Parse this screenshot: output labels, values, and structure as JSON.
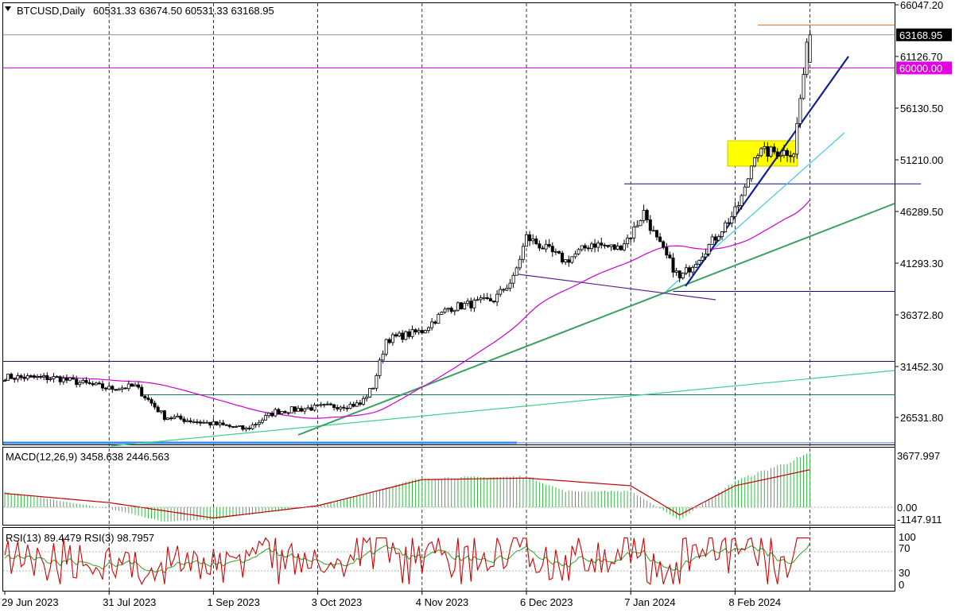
{
  "chart_data": [
    {
      "type": "candlestick",
      "title": "BTCUSD,Daily",
      "ohlc_label": "60531.33 63674.50 60531.33 63168.95",
      "last_price": 63168.95,
      "last_price_label": "63168.95",
      "level_label": "60000.00",
      "y_tick_labels": [
        "66047.20",
        "61126.70",
        "56130.50",
        "51210.00",
        "46289.50",
        "41293.30",
        "36372.80",
        "31452.30",
        "26531.80"
      ],
      "ylim": [
        23700,
        66047.2
      ],
      "x_tick_labels": [
        "29 Jun 2023",
        "31 Jul 2023",
        "1 Sep 2023",
        "3 Oct 2023",
        "4 Nov 2023",
        "6 Dec 2023",
        "7 Jan 2024",
        "8 Feb 2024"
      ],
      "horizontal_levels": [
        66047.2,
        63168.95,
        60000,
        48900,
        38600,
        31900,
        28700,
        24100
      ],
      "price_anchors": [
        [
          "29 Jun 2023",
          30400
        ],
        [
          "15 Jul 2023",
          30300
        ],
        [
          "31 Jul 2023",
          29300
        ],
        [
          "8 Aug 2023",
          29500
        ],
        [
          "17 Aug 2023",
          26600
        ],
        [
          "1 Sep 2023",
          25900
        ],
        [
          "11 Sep 2023",
          25400
        ],
        [
          "20 Sep 2023",
          27100
        ],
        [
          "3 Oct 2023",
          27500
        ],
        [
          "16 Oct 2023",
          27800
        ],
        [
          "20 Oct 2023",
          29500
        ],
        [
          "24 Oct 2023",
          34000
        ],
        [
          "4 Nov 2023",
          34800
        ],
        [
          "12 Nov 2023",
          37000
        ],
        [
          "26 Nov 2023",
          37800
        ],
        [
          "2 Dec 2023",
          39800
        ],
        [
          "6 Dec 2023",
          43800
        ],
        [
          "18 Dec 2023",
          41500
        ],
        [
          "26 Dec 2023",
          43200
        ],
        [
          "3 Jan 2024",
          42700
        ],
        [
          "7 Jan 2024",
          44000
        ],
        [
          "11 Jan 2024",
          46200
        ],
        [
          "15 Jan 2024",
          43500
        ],
        [
          "22 Jan 2024",
          39800
        ],
        [
          "31 Jan 2024",
          43000
        ],
        [
          "8 Feb 2024",
          46200
        ],
        [
          "11 Feb 2024",
          48300
        ],
        [
          "14 Feb 2024",
          51900
        ],
        [
          "26 Feb 2024",
          52000
        ],
        [
          "28 Feb 2024",
          57000
        ],
        [
          "1 Mar 2024",
          61800
        ],
        [
          "2 Mar 2024",
          63168.95
        ]
      ]
    },
    {
      "type": "bar",
      "title": "MACD(12,26,9) 3458.638 2446.563",
      "y_tick_labels": [
        "3677.997",
        "0.00",
        "-1147.911"
      ],
      "ylim": [
        -1147.911,
        3677.997
      ],
      "histogram_anchors": [
        [
          "29 Jun 2023",
          1000
        ],
        [
          "31 Jul 2023",
          -100
        ],
        [
          "17 Aug 2023",
          -950
        ],
        [
          "1 Sep 2023",
          -800
        ],
        [
          "3 Oct 2023",
          100
        ],
        [
          "4 Nov 2023",
          1900
        ],
        [
          "6 Dec 2023",
          2000
        ],
        [
          "18 Dec 2023",
          1050
        ],
        [
          "7 Jan 2024",
          1050
        ],
        [
          "22 Jan 2024",
          -850
        ],
        [
          "8 Feb 2024",
          1700
        ],
        [
          "2 Mar 2024",
          3458.638
        ]
      ],
      "signal_anchors": [
        [
          "29 Jun 2023",
          900
        ],
        [
          "31 Jul 2023",
          300
        ],
        [
          "1 Sep 2023",
          -700
        ],
        [
          "3 Oct 2023",
          100
        ],
        [
          "4 Nov 2023",
          1800
        ],
        [
          "6 Dec 2023",
          1900
        ],
        [
          "7 Jan 2024",
          1400
        ],
        [
          "22 Jan 2024",
          -500
        ],
        [
          "8 Feb 2024",
          1400
        ],
        [
          "2 Mar 2024",
          2446.563
        ]
      ]
    },
    {
      "type": "line",
      "title": "RSI(13) 89.4479  RSI(3) 98.7957",
      "y_tick_labels": [
        "100",
        "70",
        "30",
        "0"
      ],
      "ylim": [
        0,
        100
      ]
    }
  ]
}
